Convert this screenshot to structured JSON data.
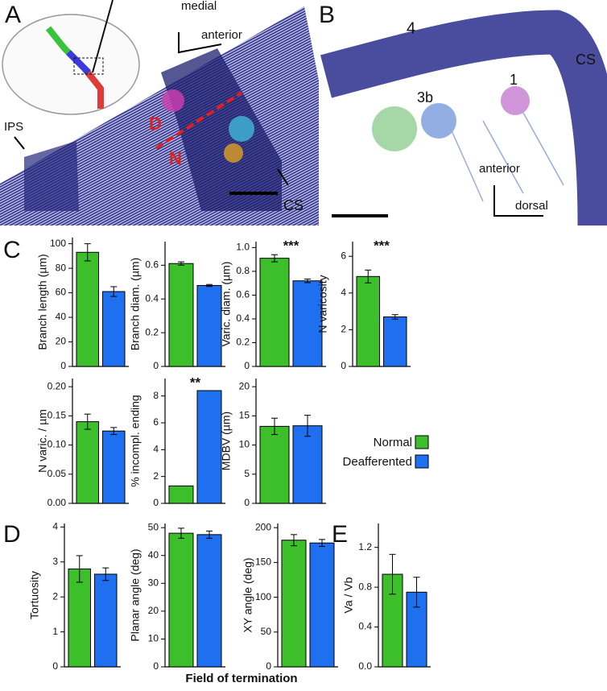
{
  "panel_a": {
    "label": "A",
    "texts": [
      "medial",
      "anterior",
      "IPS",
      "D",
      "N",
      "CS"
    ]
  },
  "panel_b": {
    "label": "B",
    "texts": [
      "4",
      "CS",
      "3b",
      "1",
      "anterior",
      "dorsal"
    ]
  },
  "panel_labels": [
    "C",
    "D",
    "E"
  ],
  "x_axis_label": "Field of termination",
  "chart_data": [
    {
      "type": "bar",
      "ylabel": "Branch length (µm)",
      "ylim": [
        0,
        105
      ],
      "yticks": [
        0,
        20,
        40,
        60,
        80,
        100
      ],
      "series": [
        {
          "name": "Normal",
          "color": "#3dbf2b",
          "values": [
            93
          ],
          "errors": [
            7
          ]
        },
        {
          "name": "Deafferented",
          "color": "#1f70f0",
          "values": [
            61
          ],
          "errors": [
            4
          ]
        }
      ]
    },
    {
      "type": "bar",
      "ylabel": "Branch diam. (µm)",
      "ylim": [
        0,
        0.74
      ],
      "yticks": [
        0,
        0.2,
        0.4,
        0.6
      ],
      "series": [
        {
          "name": "Normal",
          "color": "#3dbf2b",
          "values": [
            0.61
          ],
          "errors": [
            0.01
          ]
        },
        {
          "name": "Deafferented",
          "color": "#1f70f0",
          "values": [
            0.48
          ],
          "errors": [
            0.006
          ]
        }
      ]
    },
    {
      "type": "bar",
      "ylabel": "Varic. diam. (µm)",
      "ylim": [
        0,
        1.05
      ],
      "yticks": [
        0,
        0.2,
        0.4,
        0.6,
        0.8,
        {
          "value": 1,
          "label": "1.0"
        }
      ],
      "annotation": "***",
      "series": [
        {
          "name": "Normal",
          "color": "#3dbf2b",
          "values": [
            0.91
          ],
          "errors": [
            0.03
          ]
        },
        {
          "name": "Deafferented",
          "color": "#1f70f0",
          "values": [
            0.72
          ],
          "errors": [
            0.015
          ]
        }
      ]
    },
    {
      "type": "bar",
      "ylabel": "N varicosity",
      "ylim": [
        0,
        6.8
      ],
      "yticks": [
        0,
        2,
        4,
        6
      ],
      "annotation": "***",
      "series": [
        {
          "name": "Normal",
          "color": "#3dbf2b",
          "values": [
            4.9
          ],
          "errors": [
            0.35
          ]
        },
        {
          "name": "Deafferented",
          "color": "#1f70f0",
          "values": [
            2.7
          ],
          "errors": [
            0.12
          ]
        }
      ]
    },
    {
      "type": "bar",
      "ylabel": "N varic. / µm",
      "ylim": [
        0,
        0.214
      ],
      "yticks": [
        {
          "value": 0,
          "label": "0.00"
        },
        0.05,
        {
          "value": 0.1,
          "label": "0.10"
        },
        0.15,
        {
          "value": 0.2,
          "label": "0.20"
        }
      ],
      "series": [
        {
          "name": "Normal",
          "color": "#3dbf2b",
          "values": [
            0.14
          ],
          "errors": [
            0.013
          ]
        },
        {
          "name": "Deafferented",
          "color": "#1f70f0",
          "values": [
            0.124
          ],
          "errors": [
            0.006
          ]
        }
      ]
    },
    {
      "type": "bar",
      "ylabel": "% incompl. ending",
      "ylim": [
        0,
        9.3
      ],
      "yticks": [
        0,
        2,
        4,
        6,
        8
      ],
      "annotation": "**",
      "series": [
        {
          "name": "Normal",
          "color": "#3dbf2b",
          "values": [
            1.3
          ]
        },
        {
          "name": "Deafferented",
          "color": "#1f70f0",
          "values": [
            8.4
          ]
        }
      ]
    },
    {
      "type": "bar",
      "ylabel": "MDBV (µm)",
      "ylim": [
        0,
        21.4
      ],
      "yticks": [
        0,
        5,
        10,
        15,
        20
      ],
      "series": [
        {
          "name": "Normal",
          "color": "#3dbf2b",
          "values": [
            13.2
          ],
          "errors": [
            1.4
          ]
        },
        {
          "name": "Deafferented",
          "color": "#1f70f0",
          "values": [
            13.3
          ],
          "errors": [
            1.8
          ]
        }
      ]
    },
    {
      "type": "bar",
      "ylabel": "Tortuosity",
      "ylim": [
        0,
        4.1
      ],
      "yticks": [
        0,
        1,
        2,
        3,
        4
      ],
      "series": [
        {
          "name": "Normal",
          "color": "#3dbf2b",
          "values": [
            2.8
          ],
          "errors": [
            0.38
          ]
        },
        {
          "name": "Deafferented",
          "color": "#1f70f0",
          "values": [
            2.65
          ],
          "errors": [
            0.18
          ]
        }
      ]
    },
    {
      "type": "bar",
      "ylabel": "Planar angle (deg)",
      "ylim": [
        0,
        51.5
      ],
      "yticks": [
        0,
        10,
        20,
        30,
        40,
        50
      ],
      "series": [
        {
          "name": "Normal",
          "color": "#3dbf2b",
          "values": [
            48
          ],
          "errors": [
            1.8
          ]
        },
        {
          "name": "Deafferented",
          "color": "#1f70f0",
          "values": [
            47.5
          ],
          "errors": [
            1.3
          ]
        }
      ]
    },
    {
      "type": "bar",
      "ylabel": "XY angle (deg)",
      "ylim": [
        0,
        206
      ],
      "yticks": [
        0,
        50,
        100,
        150,
        200
      ],
      "series": [
        {
          "name": "Normal",
          "color": "#3dbf2b",
          "values": [
            182
          ],
          "errors": [
            8
          ]
        },
        {
          "name": "Deafferented",
          "color": "#1f70f0",
          "values": [
            178
          ],
          "errors": [
            5
          ]
        }
      ]
    },
    {
      "type": "bar",
      "ylabel": "Va / Vb",
      "ylim": [
        0,
        1.44
      ],
      "yticks": [
        {
          "value": 0,
          "label": "0.0"
        },
        0.4,
        0.8,
        1.2
      ],
      "series": [
        {
          "name": "Normal",
          "color": "#3dbf2b",
          "values": [
            0.93
          ],
          "errors": [
            0.2
          ]
        },
        {
          "name": "Deafferented",
          "color": "#1f70f0",
          "values": [
            0.75
          ],
          "errors": [
            0.15
          ]
        }
      ]
    }
  ]
}
